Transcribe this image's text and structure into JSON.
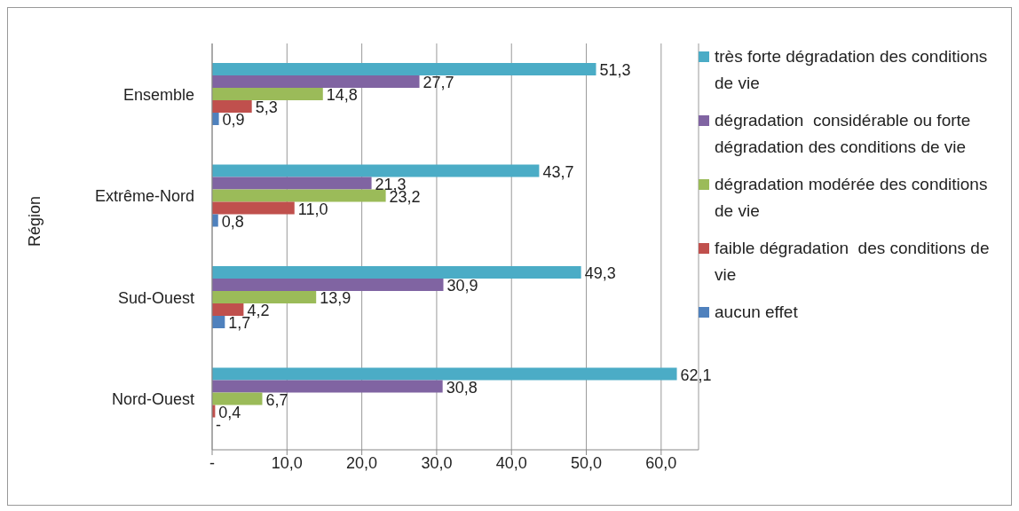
{
  "chart_data": {
    "type": "bar",
    "orientation": "horizontal",
    "ylabel": "Région",
    "categories": [
      "Ensemble",
      "Extrême-Nord",
      "Sud-Ouest",
      "Nord-Ouest"
    ],
    "series": [
      {
        "name": "très forte dégradation des conditions de vie",
        "color": "#4bacc6",
        "values": [
          51.3,
          43.7,
          49.3,
          62.1
        ],
        "value_labels": [
          "51,3",
          "43,7",
          "49,3",
          "62,1"
        ]
      },
      {
        "name": "dégradation  considérable ou forte dégradation des conditions de vie",
        "color": "#8064a2",
        "values": [
          27.7,
          21.3,
          30.9,
          30.8
        ],
        "value_labels": [
          "27,7",
          "21,3",
          "30,9",
          "30,8"
        ]
      },
      {
        "name": "dégradation modérée des conditions de vie",
        "color": "#9bbb59",
        "values": [
          14.8,
          23.2,
          13.9,
          6.7
        ],
        "value_labels": [
          "14,8",
          "23,2",
          "13,9",
          "6,7"
        ]
      },
      {
        "name": "faible dégradation  des conditions de vie",
        "color": "#c0504d",
        "values": [
          5.3,
          11.0,
          4.2,
          0.4
        ],
        "value_labels": [
          "5,3",
          "11,0",
          "4,2",
          "0,4"
        ]
      },
      {
        "name": "aucun effet",
        "color": "#4f81bd",
        "values": [
          0.9,
          0.8,
          1.7,
          0
        ],
        "value_labels": [
          "0,9",
          "0,8",
          "1,7",
          "-"
        ]
      }
    ],
    "xlim": [
      0,
      65
    ],
    "xticks": [
      {
        "value": 0,
        "label": "-"
      },
      {
        "value": 10,
        "label": "10,0"
      },
      {
        "value": 20,
        "label": "20,0"
      },
      {
        "value": 30,
        "label": "30,0"
      },
      {
        "value": 40,
        "label": "40,0"
      },
      {
        "value": 50,
        "label": "50,0"
      },
      {
        "value": 60,
        "label": "60,0"
      }
    ],
    "grid": "x",
    "legend": "right"
  }
}
